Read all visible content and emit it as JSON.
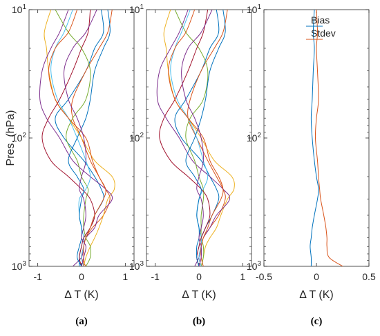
{
  "figure": {
    "ylabel": "Pres. (hPa)"
  },
  "chart_data": [
    {
      "panel": "(a)",
      "type": "line",
      "xlabel": "Δ T (K)",
      "ylabel": "Pres. (hPa)",
      "xlim": [
        -1.2,
        1.2
      ],
      "ylim": [
        1000,
        10
      ],
      "yscale": "log",
      "y_reversed": true,
      "xticks": [
        -1,
        0,
        1
      ],
      "xtick_labels": [
        "-1",
        "0",
        "1"
      ],
      "yticks": [
        10,
        100,
        1000
      ],
      "ytick_labels": [
        "10^1",
        "10^2",
        "10^3"
      ],
      "p": [
        10,
        15,
        20,
        30,
        50,
        70,
        100,
        150,
        200,
        250,
        300,
        400,
        500,
        600,
        700,
        850,
        1000
      ],
      "series": [
        {
          "color": "#0072BD",
          "x": [
            0.45,
            0.5,
            0.3,
            0.1,
            -0.3,
            -0.6,
            -0.4,
            0.05,
            0.3,
            0.45,
            0.5,
            0.3,
            0.2,
            0.05,
            0.0,
            -0.05,
            -0.05
          ]
        },
        {
          "color": "#D95319",
          "x": [
            0.7,
            0.6,
            0.4,
            0.1,
            -0.2,
            -0.2,
            0.0,
            0.2,
            0.4,
            0.55,
            0.65,
            0.5,
            0.25,
            0.1,
            0.05,
            0.0,
            0.1
          ]
        },
        {
          "color": "#EDB120",
          "x": [
            -0.7,
            -0.85,
            -0.8,
            -0.75,
            -0.6,
            -0.3,
            0.0,
            0.3,
            0.7,
            0.75,
            0.6,
            0.5,
            0.4,
            0.3,
            0.2,
            0.1,
            0.05
          ]
        },
        {
          "color": "#7E2F8E",
          "x": [
            -0.3,
            -0.5,
            -0.7,
            -0.9,
            -0.95,
            -0.8,
            -0.5,
            -0.2,
            0.2,
            0.55,
            0.7,
            0.4,
            0.3,
            0.1,
            0.05,
            0.0,
            -0.2
          ]
        },
        {
          "color": "#77AC30",
          "x": [
            -0.6,
            -0.3,
            0.0,
            0.2,
            0.1,
            -0.2,
            -0.35,
            -0.1,
            0.0,
            0.15,
            0.1,
            0.05,
            0.05,
            0.1,
            0.2,
            0.2,
            0.1
          ]
        },
        {
          "color": "#4DBEEE",
          "x": [
            -0.2,
            -0.4,
            -0.6,
            -0.7,
            -0.55,
            -0.3,
            -0.1,
            0.1,
            0.2,
            0.1,
            -0.05,
            -0.05,
            0.0,
            0.05,
            0.05,
            0.0,
            0.05
          ]
        },
        {
          "color": "#A2142F",
          "x": [
            0.2,
            0.15,
            0.0,
            -0.2,
            -0.5,
            -0.75,
            -0.9,
            -0.7,
            -0.3,
            0.0,
            0.2,
            0.3,
            0.2,
            0.05,
            0.0,
            -0.05,
            0.0
          ]
        },
        {
          "color": "#0072BD",
          "x": [
            0.6,
            0.65,
            0.5,
            0.3,
            0.2,
            0.1,
            -0.1,
            -0.3,
            -0.1,
            0.05,
            0.0,
            -0.05,
            0.0,
            0.0,
            -0.05,
            -0.1,
            0.0
          ]
        },
        {
          "color": "#D95319",
          "x": [
            -0.1,
            -0.3,
            -0.6,
            -0.75,
            -0.6,
            -0.3,
            0.1,
            0.25,
            0.4,
            0.55,
            0.5,
            0.3,
            0.2,
            0.1,
            0.05,
            0.05,
            0.05
          ]
        },
        {
          "color": "#7E2F8E",
          "x": [
            0.35,
            0.1,
            -0.2,
            -0.4,
            -0.3,
            -0.1,
            0.05,
            0.1,
            0.0,
            -0.05,
            0.05,
            0.1,
            0.05,
            0.0,
            0.1,
            0.05,
            0.0
          ]
        }
      ]
    },
    {
      "panel": "(b)",
      "type": "line",
      "xlabel": "Δ T (K)",
      "xlim": [
        -1.2,
        1.2
      ],
      "ylim": [
        1000,
        10
      ],
      "yscale": "log",
      "y_reversed": true,
      "xticks": [
        -1,
        0,
        1
      ],
      "xtick_labels": [
        "-1",
        "0",
        "1"
      ],
      "yticks": [
        10,
        100,
        1000
      ],
      "ytick_labels": [
        "10^1",
        "10^2",
        "10^3"
      ],
      "p": [
        10,
        15,
        20,
        30,
        50,
        70,
        100,
        150,
        200,
        250,
        300,
        400,
        500,
        600,
        700,
        850,
        1000
      ],
      "series": [
        {
          "color": "#0072BD",
          "x": [
            0.4,
            0.45,
            0.25,
            0.05,
            -0.3,
            -0.55,
            -0.4,
            0.05,
            0.25,
            0.4,
            0.45,
            0.3,
            0.15,
            0.05,
            0.0,
            -0.05,
            0.0
          ]
        },
        {
          "color": "#D95319",
          "x": [
            0.65,
            0.55,
            0.35,
            0.05,
            -0.2,
            -0.25,
            -0.05,
            0.2,
            0.4,
            0.55,
            0.6,
            0.45,
            0.25,
            0.1,
            0.05,
            0.0,
            0.05
          ]
        },
        {
          "color": "#EDB120",
          "x": [
            -0.65,
            -0.8,
            -0.75,
            -0.7,
            -0.55,
            -0.25,
            0.05,
            0.35,
            0.75,
            0.8,
            0.65,
            0.5,
            0.4,
            0.25,
            0.15,
            0.1,
            0.05
          ]
        },
        {
          "color": "#7E2F8E",
          "x": [
            -0.25,
            -0.45,
            -0.65,
            -0.9,
            -0.95,
            -0.75,
            -0.45,
            -0.15,
            0.25,
            0.55,
            0.7,
            0.4,
            0.25,
            0.1,
            0.05,
            0.0,
            -0.1
          ]
        },
        {
          "color": "#77AC30",
          "x": [
            -0.55,
            -0.3,
            0.0,
            0.2,
            0.1,
            -0.2,
            -0.3,
            -0.1,
            0.0,
            0.1,
            0.1,
            0.05,
            0.05,
            0.05,
            0.1,
            0.1,
            0.05
          ]
        },
        {
          "color": "#4DBEEE",
          "x": [
            -0.2,
            -0.4,
            -0.55,
            -0.65,
            -0.5,
            -0.25,
            -0.05,
            0.1,
            0.2,
            0.1,
            0.0,
            -0.05,
            0.0,
            0.05,
            0.05,
            0.0,
            0.05
          ]
        },
        {
          "color": "#A2142F",
          "x": [
            0.2,
            0.1,
            -0.05,
            -0.25,
            -0.55,
            -0.8,
            -0.9,
            -0.65,
            -0.25,
            0.05,
            0.2,
            0.25,
            0.15,
            0.05,
            0.0,
            -0.05,
            0.0
          ]
        },
        {
          "color": "#0072BD",
          "x": [
            0.55,
            0.6,
            0.45,
            0.25,
            0.15,
            0.05,
            -0.1,
            -0.3,
            -0.1,
            0.05,
            0.0,
            -0.05,
            0.0,
            0.0,
            -0.05,
            -0.05,
            0.0
          ]
        },
        {
          "color": "#D95319",
          "x": [
            -0.1,
            -0.3,
            -0.55,
            -0.7,
            -0.55,
            -0.25,
            0.1,
            0.25,
            0.45,
            0.55,
            0.5,
            0.3,
            0.2,
            0.1,
            0.05,
            0.05,
            0.1
          ]
        },
        {
          "color": "#7E2F8E",
          "x": [
            0.3,
            0.05,
            -0.25,
            -0.4,
            -0.3,
            -0.1,
            0.05,
            0.1,
            0.0,
            -0.05,
            0.05,
            0.1,
            0.05,
            0.0,
            0.05,
            0.05,
            0.0
          ]
        }
      ]
    },
    {
      "panel": "(c)",
      "type": "line",
      "xlabel": "Δ T (K)",
      "xlim": [
        -0.5,
        0.5
      ],
      "ylim": [
        1000,
        10
      ],
      "yscale": "log",
      "y_reversed": true,
      "xticks": [
        -0.5,
        0,
        0.5
      ],
      "xtick_labels": [
        "-0.5",
        "0",
        "0.5"
      ],
      "yticks": [
        10,
        100,
        1000
      ],
      "ytick_labels": [
        "10^1",
        "10^2",
        "10^3"
      ],
      "legend": {
        "position": "top-right",
        "entries": [
          "Bias",
          "Stdev"
        ]
      },
      "p": [
        10,
        15,
        20,
        30,
        50,
        70,
        100,
        150,
        200,
        250,
        300,
        400,
        500,
        600,
        700,
        850,
        1000
      ],
      "series": [
        {
          "name": "Bias",
          "color": "#0072BD",
          "x": [
            -0.02,
            -0.03,
            -0.02,
            -0.03,
            -0.04,
            -0.05,
            -0.04,
            -0.02,
            0.0,
            0.02,
            0.01,
            -0.02,
            -0.04,
            -0.05,
            -0.06,
            -0.05,
            -0.05
          ]
        },
        {
          "name": "Stdev",
          "color": "#D95319",
          "x": [
            0.0,
            0.01,
            0.0,
            0.01,
            0.02,
            0.0,
            -0.01,
            0.01,
            0.02,
            0.03,
            0.04,
            0.07,
            0.09,
            0.1,
            0.1,
            0.12,
            0.25
          ]
        }
      ]
    }
  ]
}
